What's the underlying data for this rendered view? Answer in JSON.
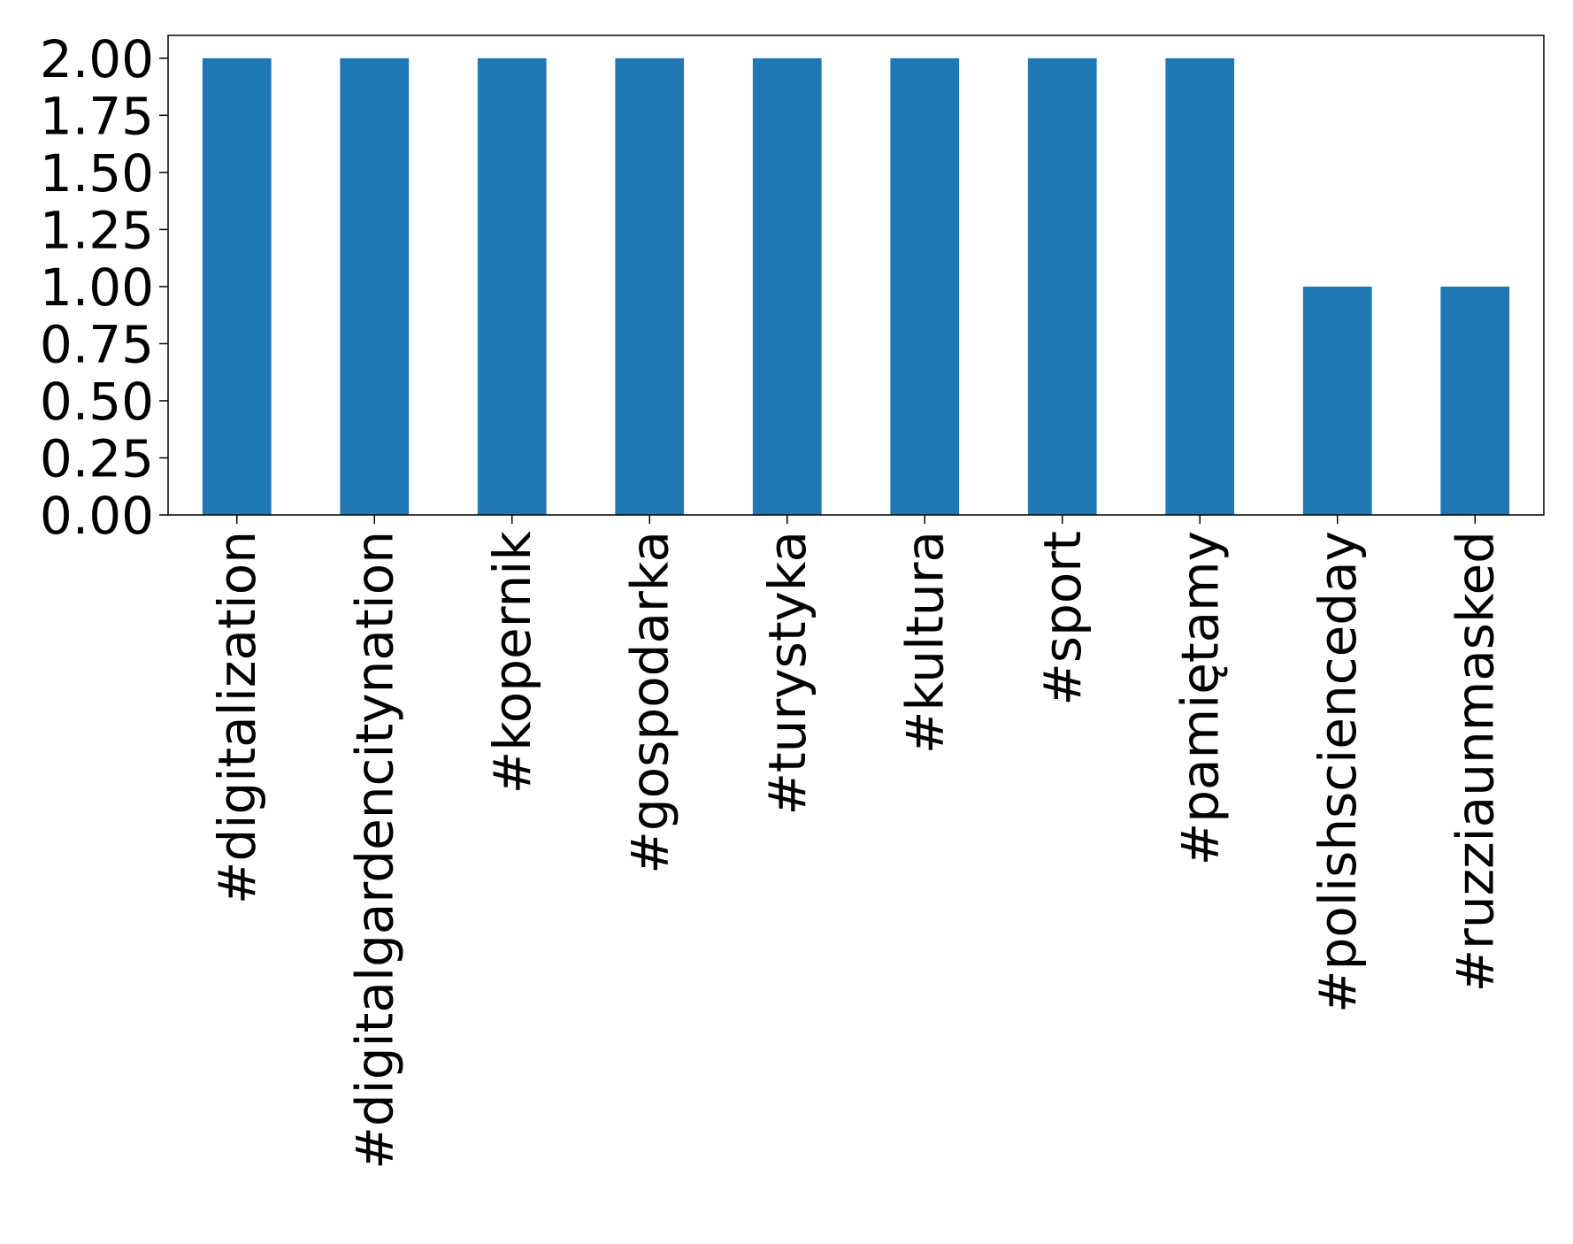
{
  "chart_data": {
    "type": "bar",
    "title": "",
    "xlabel": "",
    "ylabel": "",
    "categories": [
      "#digitalization",
      "#digitalgardencitynation",
      "#kopernik",
      "#gospodarka",
      "#turystyka",
      "#kultura",
      "#sport",
      "#pamiętamy",
      "#polishscienceday",
      "#ruzziaunmasked"
    ],
    "values": [
      2,
      2,
      2,
      2,
      2,
      2,
      2,
      2,
      1,
      1
    ],
    "ylim": [
      0,
      2.1
    ],
    "yticks": [
      0.0,
      0.25,
      0.5,
      0.75,
      1.0,
      1.25,
      1.5,
      1.75,
      2.0
    ],
    "ytick_labels": [
      "0.00",
      "0.25",
      "0.50",
      "0.75",
      "1.00",
      "1.25",
      "1.50",
      "1.75",
      "2.00"
    ],
    "bar_color": "#1f77b4",
    "grid": false,
    "legend": "none"
  }
}
